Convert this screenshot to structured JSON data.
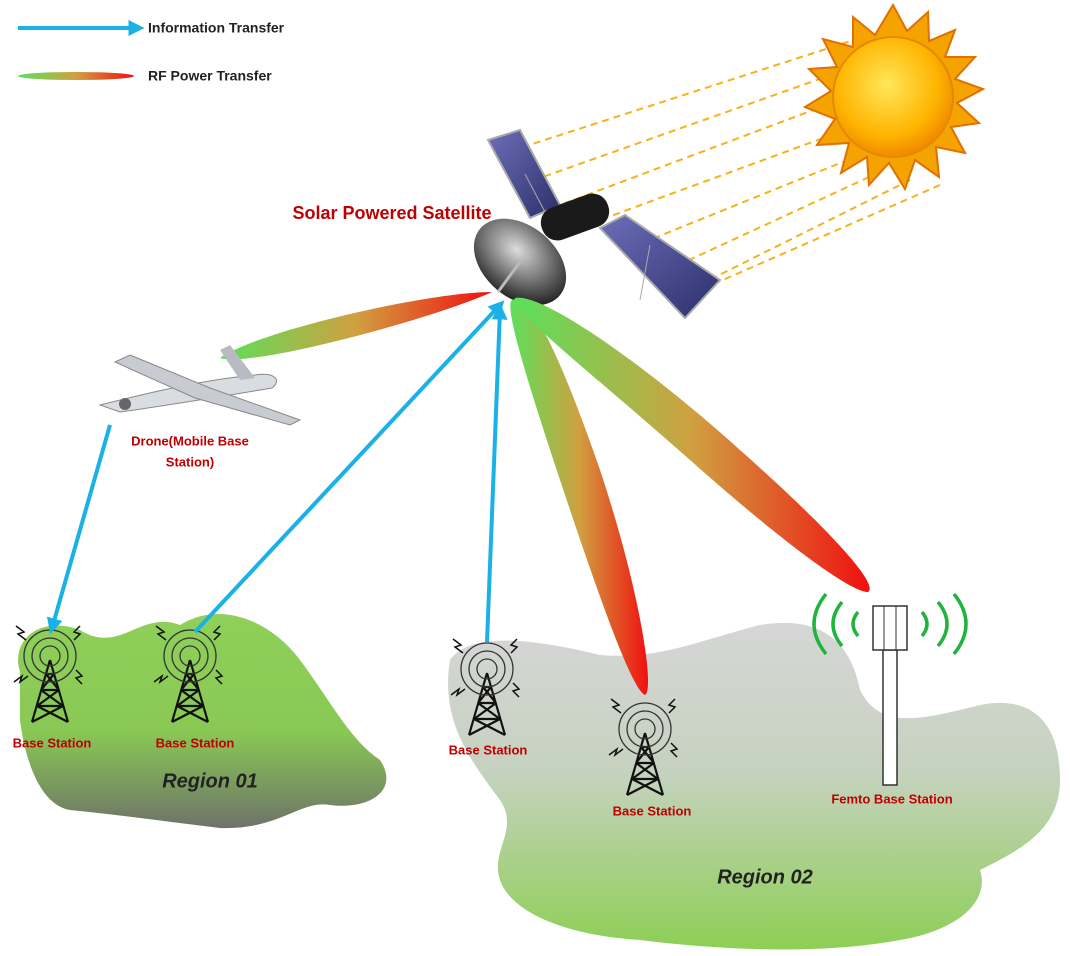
{
  "legend": [
    {
      "label": "Information Transfer"
    },
    {
      "label": "RF Power Transfer"
    }
  ],
  "satellite": {
    "label": "Solar Powered Satellite"
  },
  "drone": {
    "label_lines": [
      "Drone(Mobile Base",
      "Station)"
    ]
  },
  "stations": [
    {
      "label": "Base Station"
    },
    {
      "label": "Base Station"
    },
    {
      "label": "Base Station"
    },
    {
      "label": "Base Station"
    },
    {
      "label": "Femto Base Station"
    }
  ],
  "regions": [
    {
      "label": "Region 01"
    },
    {
      "label": "Region 02"
    }
  ]
}
